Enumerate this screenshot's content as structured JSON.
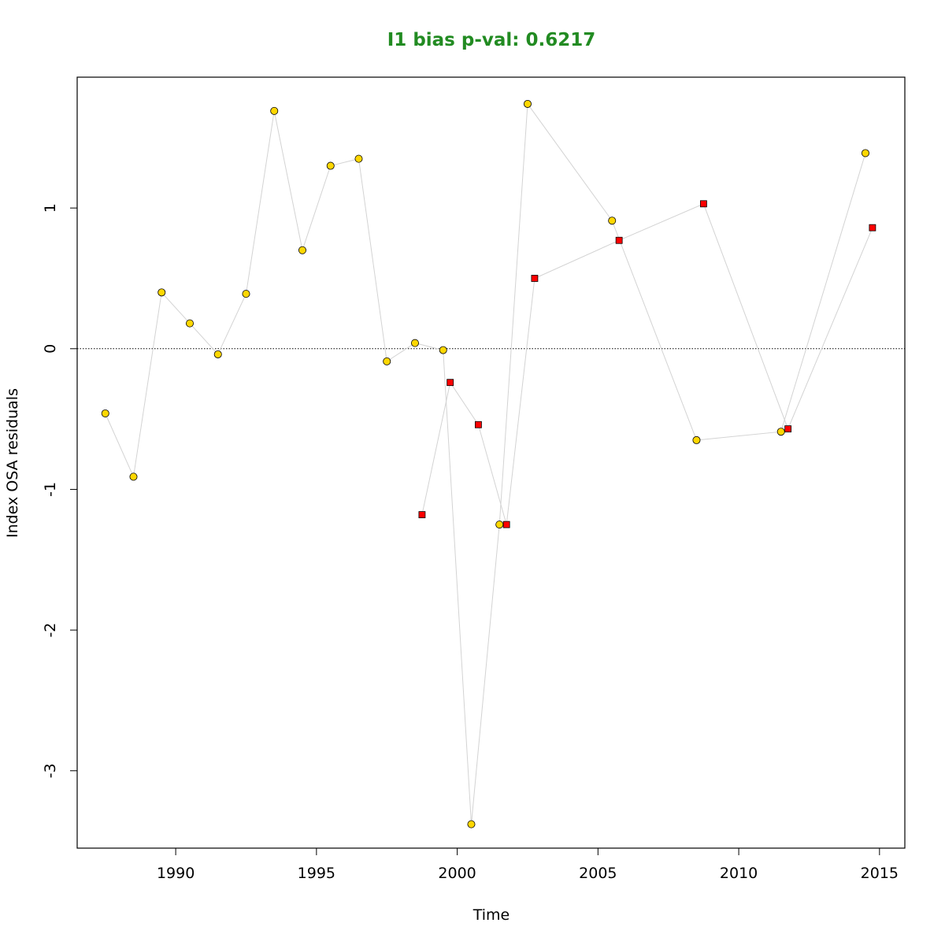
{
  "chart_data": {
    "type": "scatter",
    "title": "I1 bias p-val: 0.6217",
    "title_color": "#228B22",
    "xlabel": "Time",
    "ylabel": "Index OSA residuals",
    "xlim": [
      1986.5,
      2015.9
    ],
    "ylim": [
      -3.55,
      1.93
    ],
    "x_ticks": [
      1990,
      1995,
      2000,
      2005,
      2010,
      2015
    ],
    "y_ticks": [
      -3,
      -2,
      -1,
      0,
      1
    ],
    "reference_line": 0,
    "grid": false,
    "connector_color": "#d3d3d3",
    "series": [
      {
        "marker": "circle",
        "fill": "#FFD700",
        "points": [
          {
            "x": 1987.5,
            "y": -0.46
          },
          {
            "x": 1988.5,
            "y": -0.91
          },
          {
            "x": 1989.5,
            "y": 0.4
          },
          {
            "x": 1990.5,
            "y": 0.18
          },
          {
            "x": 1991.5,
            "y": -0.04
          },
          {
            "x": 1992.5,
            "y": 0.39
          },
          {
            "x": 1993.5,
            "y": 1.69
          },
          {
            "x": 1994.5,
            "y": 0.7
          },
          {
            "x": 1995.5,
            "y": 1.3
          },
          {
            "x": 1996.5,
            "y": 1.35
          },
          {
            "x": 1997.5,
            "y": -0.09
          },
          {
            "x": 1998.5,
            "y": 0.04
          },
          {
            "x": 1999.5,
            "y": -0.01
          },
          {
            "x": 2000.5,
            "y": -3.38
          },
          {
            "x": 2001.5,
            "y": -1.25
          },
          {
            "x": 2002.5,
            "y": 1.74
          },
          {
            "x": 2005.5,
            "y": 0.91
          },
          {
            "x": 2008.5,
            "y": -0.65
          },
          {
            "x": 2011.5,
            "y": -0.59
          },
          {
            "x": 2014.5,
            "y": 1.39
          }
        ]
      },
      {
        "marker": "square",
        "fill": "#FF0000",
        "points": [
          {
            "x": 1998.75,
            "y": -1.18
          },
          {
            "x": 1999.75,
            "y": -0.24
          },
          {
            "x": 2000.75,
            "y": -0.54
          },
          {
            "x": 2001.75,
            "y": -1.25
          },
          {
            "x": 2002.75,
            "y": 0.5
          },
          {
            "x": 2005.75,
            "y": 0.77
          },
          {
            "x": 2008.75,
            "y": 1.03
          },
          {
            "x": 2011.75,
            "y": -0.57
          },
          {
            "x": 2014.75,
            "y": 0.86
          }
        ]
      }
    ]
  }
}
